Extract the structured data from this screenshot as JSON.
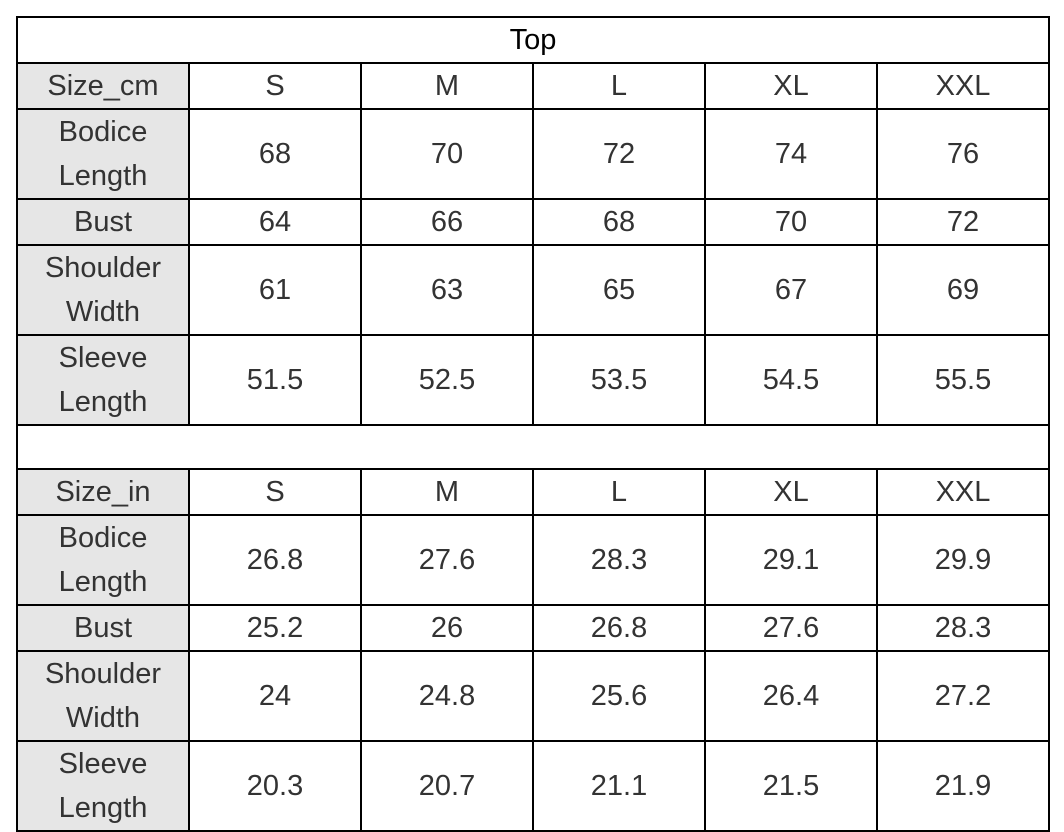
{
  "title": "Top",
  "tables": [
    {
      "header": [
        "Size_cm",
        "S",
        "M",
        "L",
        "XL",
        "XXL"
      ],
      "rows": [
        [
          "Bodice Length",
          "68",
          "70",
          "72",
          "74",
          "76"
        ],
        [
          "Bust",
          "64",
          "66",
          "68",
          "70",
          "72"
        ],
        [
          "Shoulder Width",
          "61",
          "63",
          "65",
          "67",
          "69"
        ],
        [
          "Sleeve Length",
          "51.5",
          "52.5",
          "53.5",
          "54.5",
          "55.5"
        ]
      ]
    },
    {
      "header": [
        "Size_in",
        "S",
        "M",
        "L",
        "XL",
        "XXL"
      ],
      "rows": [
        [
          "Bodice Length",
          "26.8",
          "27.6",
          "28.3",
          "29.1",
          "29.9"
        ],
        [
          "Bust",
          "25.2",
          "26",
          "26.8",
          "27.6",
          "28.3"
        ],
        [
          "Shoulder Width",
          "24",
          "24.8",
          "25.6",
          "26.4",
          "27.2"
        ],
        [
          "Sleeve Length",
          "20.3",
          "20.7",
          "21.1",
          "21.5",
          "21.9"
        ]
      ]
    }
  ]
}
